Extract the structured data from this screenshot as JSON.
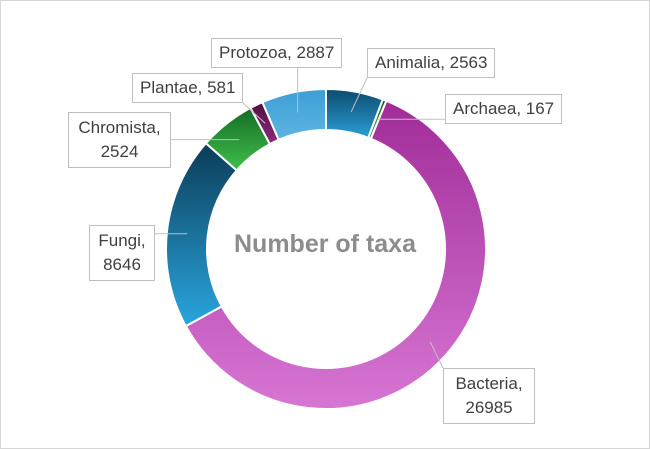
{
  "chart_data": {
    "type": "doughnut",
    "title": "Number of taxa",
    "slices": [
      {
        "label": "Animalia",
        "value": 2563,
        "color": "#1e82b4",
        "display": "Animalia, 2563"
      },
      {
        "label": "Archaea",
        "value": 167,
        "color": "#3a8a3a",
        "display": "Archaea, 167"
      },
      {
        "label": "Bacteria",
        "value": 26985,
        "color": "#c24fb7",
        "display": "Bacteria, 26985"
      },
      {
        "label": "Fungi",
        "value": 8646,
        "color": "#1f88c6",
        "display": "Fungi, 8646"
      },
      {
        "label": "Chromista",
        "value": 2524,
        "color": "#2fad3c",
        "display": "Chromista, 2524"
      },
      {
        "label": "Plantae",
        "value": 581,
        "color": "#7a1d64",
        "display": "Plantae, 581"
      },
      {
        "label": "Protozoa",
        "value": 2887,
        "color": "#4ea9db",
        "display": "Protozoa, 2887"
      }
    ]
  }
}
